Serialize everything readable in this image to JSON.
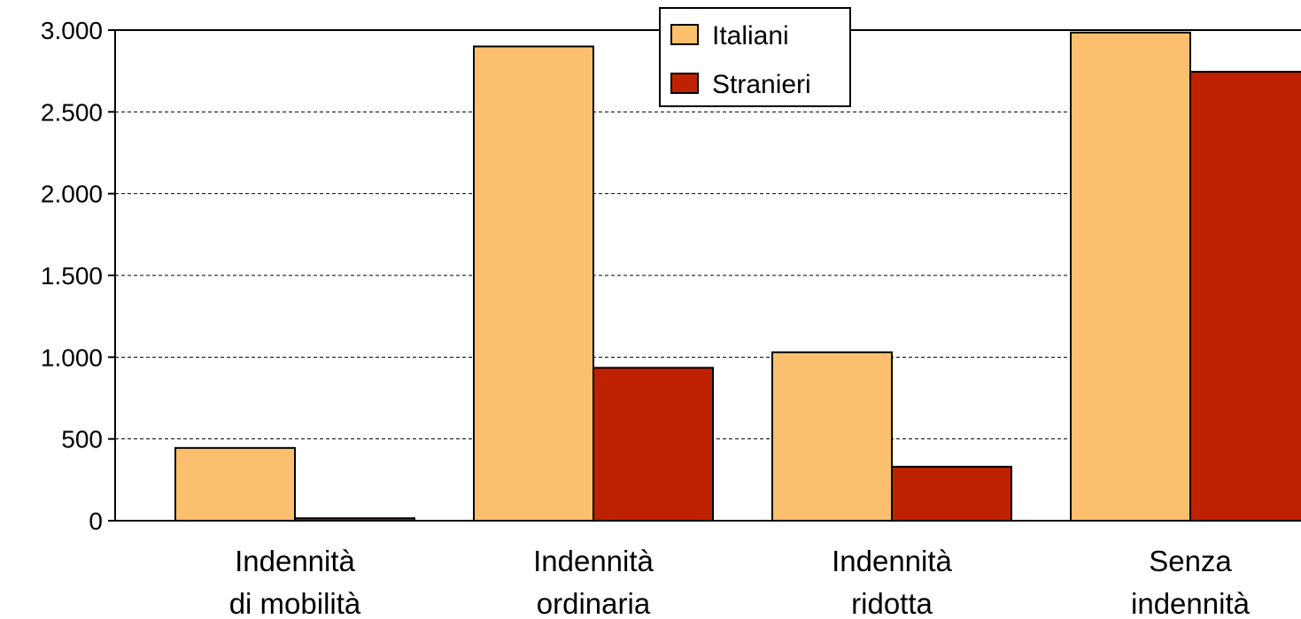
{
  "chart_data": {
    "type": "bar",
    "title": "",
    "xlabel": "",
    "ylabel": "",
    "ylim": [
      0,
      3000
    ],
    "yticks": [
      {
        "value": 0,
        "label": "0"
      },
      {
        "value": 500,
        "label": "500"
      },
      {
        "value": 1000,
        "label": "1.000"
      },
      {
        "value": 1500,
        "label": "1.500"
      },
      {
        "value": 2000,
        "label": "2.000"
      },
      {
        "value": 2500,
        "label": "2.500"
      },
      {
        "value": 3000,
        "label": "3.000"
      }
    ],
    "grid": "horizontal-dashed",
    "legend_position": "top-center",
    "categories": [
      {
        "line1": "Indennità",
        "line2": "di mobilità"
      },
      {
        "line1": "Indennità",
        "line2": "ordinaria"
      },
      {
        "line1": "Indennità",
        "line2": "ridotta"
      },
      {
        "line1": "Senza",
        "line2": "indennità"
      }
    ],
    "series": [
      {
        "name": "Italiani",
        "color": "#FBBF6E",
        "values": [
          445,
          2900,
          1030,
          2985
        ]
      },
      {
        "name": "Stranieri",
        "color": "#BE2200",
        "values": [
          15,
          935,
          330,
          2745
        ]
      }
    ]
  }
}
